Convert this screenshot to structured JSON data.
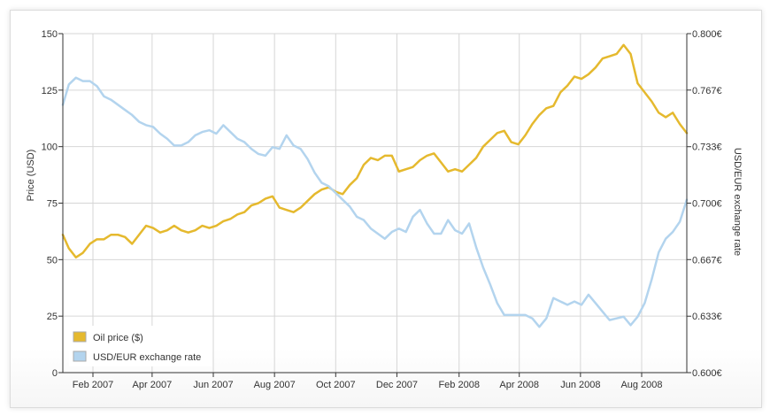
{
  "chart_data": {
    "type": "line",
    "ylabel": "Price (USD)",
    "y2label": "USD/EUR exchange rate",
    "ylim": [
      0,
      150
    ],
    "y2lim": [
      0.6,
      0.8
    ],
    "xlim": [
      "2007-01-02",
      "2008-09-15"
    ],
    "y_ticks": [
      0,
      25,
      50,
      75,
      100,
      125,
      150
    ],
    "y_tick_labels": [
      "0",
      "25",
      "50",
      "75",
      "100",
      "125",
      "150"
    ],
    "y2_ticks": [
      0.6,
      0.6333,
      0.6667,
      0.7,
      0.7333,
      0.7667,
      0.8
    ],
    "y2_tick_labels": [
      "0.600€",
      "0.633€",
      "0.667€",
      "0.700€",
      "0.733€",
      "0.767€",
      "0.800€"
    ],
    "x_ticks": [
      "2007-02-01",
      "2007-04-01",
      "2007-06-01",
      "2007-08-01",
      "2007-10-01",
      "2007-12-01",
      "2008-02-01",
      "2008-04-01",
      "2008-06-01",
      "2008-08-01"
    ],
    "x_tick_labels": [
      "Feb 2007",
      "Apr 2007",
      "Jun 2007",
      "Aug 2007",
      "Oct 2007",
      "Dec 2007",
      "Feb 2008",
      "Apr 2008",
      "Jun 2008",
      "Aug 2008"
    ],
    "grid": true,
    "legend_position": "bottom-left",
    "series": [
      {
        "name": "Oil price ($)",
        "axis": "left",
        "color": "#e5b92e",
        "x": [
          "2007-01-02",
          "2007-01-08",
          "2007-01-15",
          "2007-01-22",
          "2007-01-29",
          "2007-02-05",
          "2007-02-12",
          "2007-02-19",
          "2007-02-26",
          "2007-03-05",
          "2007-03-12",
          "2007-03-19",
          "2007-03-26",
          "2007-04-02",
          "2007-04-09",
          "2007-04-16",
          "2007-04-23",
          "2007-04-30",
          "2007-05-07",
          "2007-05-14",
          "2007-05-21",
          "2007-05-28",
          "2007-06-04",
          "2007-06-11",
          "2007-06-18",
          "2007-06-25",
          "2007-07-02",
          "2007-07-09",
          "2007-07-16",
          "2007-07-23",
          "2007-07-30",
          "2007-08-06",
          "2007-08-13",
          "2007-08-20",
          "2007-08-27",
          "2007-09-03",
          "2007-09-10",
          "2007-09-17",
          "2007-09-24",
          "2007-10-01",
          "2007-10-08",
          "2007-10-15",
          "2007-10-22",
          "2007-10-29",
          "2007-11-05",
          "2007-11-12",
          "2007-11-19",
          "2007-11-26",
          "2007-12-03",
          "2007-12-10",
          "2007-12-17",
          "2007-12-24",
          "2007-12-31",
          "2008-01-07",
          "2008-01-14",
          "2008-01-21",
          "2008-01-28",
          "2008-02-04",
          "2008-02-11",
          "2008-02-18",
          "2008-02-25",
          "2008-03-03",
          "2008-03-10",
          "2008-03-17",
          "2008-03-24",
          "2008-03-31",
          "2008-04-07",
          "2008-04-14",
          "2008-04-21",
          "2008-04-28",
          "2008-05-05",
          "2008-05-12",
          "2008-05-19",
          "2008-05-26",
          "2008-06-02",
          "2008-06-09",
          "2008-06-16",
          "2008-06-23",
          "2008-06-30",
          "2008-07-07",
          "2008-07-14",
          "2008-07-21",
          "2008-07-28",
          "2008-08-04",
          "2008-08-11",
          "2008-08-18",
          "2008-08-25",
          "2008-09-01",
          "2008-09-08",
          "2008-09-15"
        ],
        "values": [
          61,
          55,
          51,
          53,
          57,
          59,
          59,
          61,
          61,
          60,
          57,
          61,
          65,
          64,
          62,
          63,
          65,
          63,
          62,
          63,
          65,
          64,
          65,
          67,
          68,
          70,
          71,
          74,
          75,
          77,
          78,
          73,
          72,
          71,
          73,
          76,
          79,
          81,
          82,
          80,
          79,
          83,
          86,
          92,
          95,
          94,
          96,
          96,
          89,
          90,
          91,
          94,
          96,
          97,
          93,
          89,
          90,
          89,
          92,
          95,
          100,
          103,
          106,
          107,
          102,
          101,
          105,
          110,
          114,
          117,
          118,
          124,
          127,
          131,
          130,
          132,
          135,
          139,
          140,
          141,
          145,
          141,
          128,
          124,
          120,
          115,
          113,
          115,
          110,
          106
        ]
      },
      {
        "name": "USD/EUR exchange rate",
        "axis": "right",
        "color": "#b3d4ee",
        "x": [
          "2007-01-02",
          "2007-01-08",
          "2007-01-15",
          "2007-01-22",
          "2007-01-29",
          "2007-02-05",
          "2007-02-12",
          "2007-02-19",
          "2007-02-26",
          "2007-03-05",
          "2007-03-12",
          "2007-03-19",
          "2007-03-26",
          "2007-04-02",
          "2007-04-09",
          "2007-04-16",
          "2007-04-23",
          "2007-04-30",
          "2007-05-07",
          "2007-05-14",
          "2007-05-21",
          "2007-05-28",
          "2007-06-04",
          "2007-06-11",
          "2007-06-18",
          "2007-06-25",
          "2007-07-02",
          "2007-07-09",
          "2007-07-16",
          "2007-07-23",
          "2007-07-30",
          "2007-08-06",
          "2007-08-13",
          "2007-08-20",
          "2007-08-27",
          "2007-09-03",
          "2007-09-10",
          "2007-09-17",
          "2007-09-24",
          "2007-10-01",
          "2007-10-08",
          "2007-10-15",
          "2007-10-22",
          "2007-10-29",
          "2007-11-05",
          "2007-11-12",
          "2007-11-19",
          "2007-11-26",
          "2007-12-03",
          "2007-12-10",
          "2007-12-17",
          "2007-12-24",
          "2007-12-31",
          "2008-01-07",
          "2008-01-14",
          "2008-01-21",
          "2008-01-28",
          "2008-02-04",
          "2008-02-11",
          "2008-02-18",
          "2008-02-25",
          "2008-03-03",
          "2008-03-10",
          "2008-03-17",
          "2008-03-24",
          "2008-03-31",
          "2008-04-07",
          "2008-04-14",
          "2008-04-21",
          "2008-04-28",
          "2008-05-05",
          "2008-05-12",
          "2008-05-19",
          "2008-05-26",
          "2008-06-02",
          "2008-06-09",
          "2008-06-16",
          "2008-06-23",
          "2008-06-30",
          "2008-07-07",
          "2008-07-14",
          "2008-07-21",
          "2008-07-28",
          "2008-08-04",
          "2008-08-11",
          "2008-08-18",
          "2008-08-25",
          "2008-09-01",
          "2008-09-08",
          "2008-09-15"
        ],
        "values": [
          0.758,
          0.77,
          0.774,
          0.772,
          0.772,
          0.769,
          0.763,
          0.761,
          0.758,
          0.755,
          0.752,
          0.748,
          0.746,
          0.745,
          0.741,
          0.738,
          0.734,
          0.734,
          0.736,
          0.74,
          0.742,
          0.743,
          0.741,
          0.746,
          0.742,
          0.738,
          0.736,
          0.732,
          0.729,
          0.728,
          0.733,
          0.732,
          0.74,
          0.734,
          0.732,
          0.726,
          0.718,
          0.712,
          0.71,
          0.706,
          0.702,
          0.698,
          0.692,
          0.69,
          0.685,
          0.682,
          0.679,
          0.683,
          0.685,
          0.683,
          0.692,
          0.696,
          0.688,
          0.682,
          0.682,
          0.69,
          0.684,
          0.682,
          0.688,
          0.674,
          0.662,
          0.652,
          0.641,
          0.634,
          0.634,
          0.634,
          0.634,
          0.632,
          0.627,
          0.632,
          0.644,
          0.642,
          0.64,
          0.642,
          0.64,
          0.646,
          0.641,
          0.636,
          0.631,
          0.632,
          0.633,
          0.628,
          0.633,
          0.641,
          0.655,
          0.671,
          0.679,
          0.683,
          0.689,
          0.702
        ]
      }
    ]
  },
  "legend": {
    "items": [
      {
        "label": "Oil price ($)",
        "color": "#e5b92e"
      },
      {
        "label": "USD/EUR exchange rate",
        "color": "#b3d4ee"
      }
    ]
  },
  "colors": {
    "grid": "#d6d6d6",
    "axis": "#333333"
  }
}
